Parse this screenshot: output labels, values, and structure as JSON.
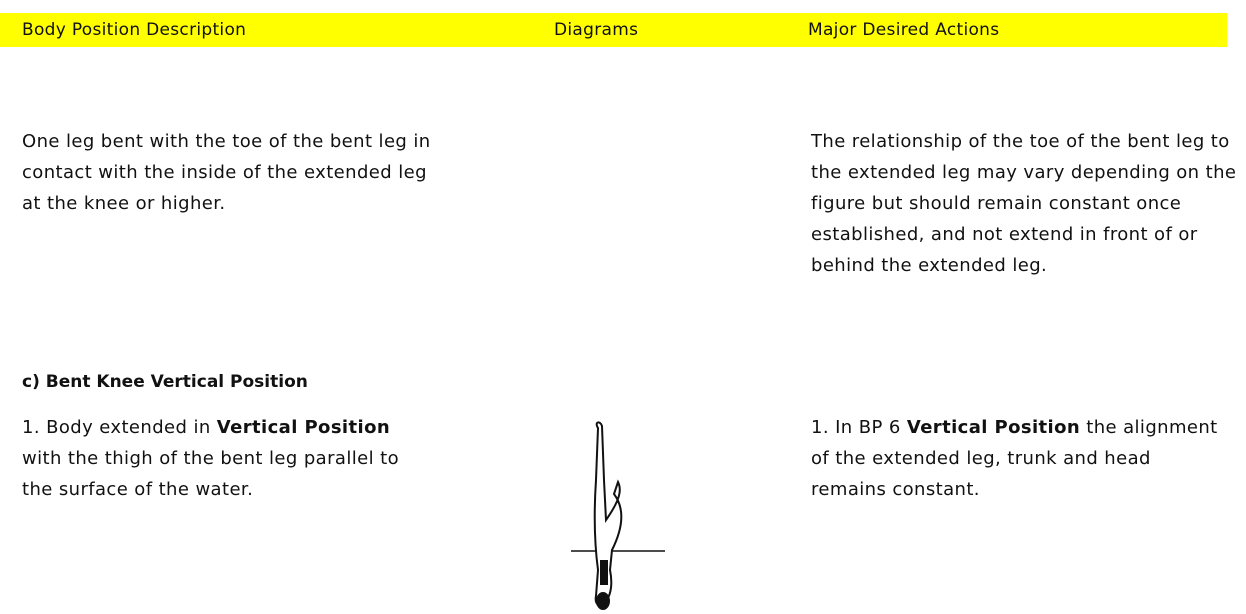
{
  "header": {
    "columns": [
      "Body Position Description",
      "Diagrams",
      "Major Desired Actions"
    ]
  },
  "rows": [
    {
      "description": [
        {
          "text": "One leg bent with the toe of the bent leg in contact with the inside of the extended leg at the knee or higher.",
          "bold": false
        }
      ],
      "actions": [
        {
          "text": "The relationship of the toe of the bent leg to the extended leg may vary depending on the figure but should remain constant once established, and not extend in front of or behind the extended leg.",
          "bold": false
        }
      ]
    }
  ],
  "section": {
    "title": "c) Bent Knee Vertical Position",
    "description": [
      {
        "text": "1. Body extended in ",
        "bold": false
      },
      {
        "text": "Vertical Position",
        "bold": true
      },
      {
        "text": " with the thigh of the bent leg parallel to the surface of the water.",
        "bold": false
      }
    ],
    "actions": [
      {
        "text": "1. In BP 6 ",
        "bold": false
      },
      {
        "text": "Vertical Position",
        "bold": true
      },
      {
        "text": " the alignment of the extended leg, trunk and head remains constant.",
        "bold": false
      }
    ]
  }
}
